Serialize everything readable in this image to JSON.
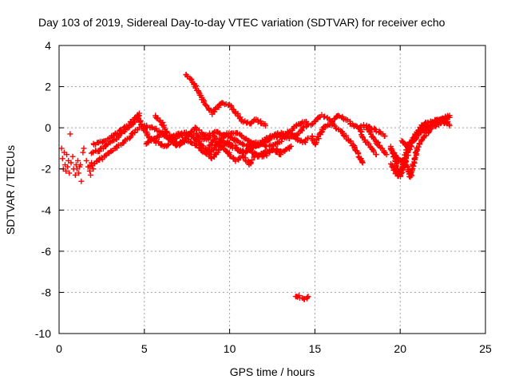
{
  "chart_data": {
    "type": "scatter",
    "title": "Day 103 of 2019, Sidereal Day-to-day VTEC variation (SDTVAR) for receiver echo",
    "xlabel": "GPS time / hours",
    "ylabel": "SDTVAR / TECUs",
    "xlim": [
      0,
      25
    ],
    "ylim": [
      -10,
      4
    ],
    "xticks": [
      0,
      5,
      10,
      15,
      20,
      25
    ],
    "yticks": [
      -10,
      -8,
      -6,
      -4,
      -2,
      0,
      2,
      4
    ],
    "grid": true,
    "marker": "+",
    "color": "#ff0000",
    "series": [
      {
        "name": "scatter-start",
        "trace": false,
        "points": [
          [
            0.15,
            -1.0
          ],
          [
            0.2,
            -1.5
          ],
          [
            0.25,
            -2.0
          ],
          [
            0.3,
            -1.2
          ],
          [
            0.35,
            -1.8
          ],
          [
            0.4,
            -2.1
          ],
          [
            0.45,
            -1.3
          ],
          [
            0.5,
            -1.9
          ],
          [
            0.55,
            -1.6
          ],
          [
            0.6,
            -2.2
          ],
          [
            0.65,
            -0.3
          ],
          [
            0.7,
            -1.7
          ],
          [
            0.8,
            -1.4
          ],
          [
            0.85,
            -2.0
          ],
          [
            0.95,
            -2.3
          ],
          [
            1.0,
            -1.8
          ],
          [
            1.05,
            -2.0
          ],
          [
            1.1,
            -1.6
          ],
          [
            1.15,
            -2.2
          ],
          [
            1.2,
            -1.9
          ],
          [
            1.25,
            -1.8
          ],
          [
            1.3,
            -2.6
          ],
          [
            1.4,
            -1.2
          ],
          [
            1.45,
            -1.0
          ],
          [
            1.6,
            -1.6
          ],
          [
            1.7,
            -1.9
          ],
          [
            1.8,
            -2.1
          ],
          [
            1.85,
            -2.3
          ],
          [
            1.9,
            -1.7
          ],
          [
            2.0,
            -2.0
          ]
        ]
      },
      {
        "name": "rise-lower",
        "trace": true,
        "points": [
          [
            1.8,
            -1.9
          ],
          [
            2.3,
            -1.6
          ],
          [
            2.8,
            -1.3
          ],
          [
            3.3,
            -1.0
          ],
          [
            3.8,
            -0.7
          ],
          [
            4.3,
            -0.3
          ],
          [
            4.7,
            0.0
          ]
        ]
      },
      {
        "name": "rise-mid",
        "trace": true,
        "points": [
          [
            1.9,
            -1.2
          ],
          [
            2.4,
            -1.1
          ],
          [
            2.9,
            -0.8
          ],
          [
            3.4,
            -0.5
          ],
          [
            3.9,
            -0.1
          ],
          [
            4.4,
            0.3
          ],
          [
            4.7,
            0.6
          ]
        ]
      },
      {
        "name": "rise-upper",
        "trace": true,
        "points": [
          [
            2.0,
            -0.8
          ],
          [
            2.5,
            -0.7
          ],
          [
            3.0,
            -0.5
          ],
          [
            3.5,
            -0.2
          ],
          [
            4.0,
            0.1
          ],
          [
            4.4,
            0.4
          ],
          [
            4.7,
            0.7
          ]
        ]
      },
      {
        "name": "high-arc",
        "trace": true,
        "points": [
          [
            7.4,
            2.6
          ],
          [
            7.8,
            2.3
          ],
          [
            8.2,
            1.7
          ],
          [
            8.6,
            1.1
          ],
          [
            9.0,
            0.7
          ],
          [
            9.3,
            1.0
          ],
          [
            9.6,
            1.2
          ],
          [
            10.0,
            1.1
          ],
          [
            10.4,
            0.7
          ],
          [
            10.8,
            0.3
          ],
          [
            11.2,
            0.2
          ],
          [
            11.5,
            0.4
          ],
          [
            11.8,
            0.3
          ],
          [
            12.1,
            0.1
          ]
        ]
      },
      {
        "name": "tangle-a",
        "trace": true,
        "points": [
          [
            4.7,
            0.4
          ],
          [
            5.2,
            -0.4
          ],
          [
            5.7,
            -0.7
          ],
          [
            6.2,
            -0.9
          ],
          [
            6.8,
            -0.6
          ],
          [
            7.3,
            -0.2
          ],
          [
            7.8,
            -0.4
          ],
          [
            8.3,
            -0.8
          ],
          [
            8.8,
            -1.3
          ],
          [
            9.3,
            -0.8
          ],
          [
            9.8,
            -0.3
          ],
          [
            10.4,
            -0.2
          ],
          [
            11.0,
            -0.6
          ],
          [
            11.6,
            -0.9
          ],
          [
            12.2,
            -0.5
          ],
          [
            12.8,
            -0.3
          ],
          [
            13.5,
            -0.2
          ],
          [
            14.0,
            -0.6
          ],
          [
            14.4,
            -0.7
          ],
          [
            14.6,
            -0.5
          ]
        ]
      },
      {
        "name": "tangle-b",
        "trace": true,
        "points": [
          [
            5.0,
            0.1
          ],
          [
            5.5,
            0.0
          ],
          [
            6.0,
            -0.2
          ],
          [
            6.5,
            -0.5
          ],
          [
            7.0,
            -0.3
          ],
          [
            7.5,
            -0.4
          ],
          [
            8.0,
            -0.3
          ],
          [
            8.5,
            -0.6
          ],
          [
            9.0,
            -0.4
          ],
          [
            9.5,
            -0.6
          ],
          [
            10.0,
            -0.9
          ],
          [
            10.5,
            -1.1
          ],
          [
            11.0,
            -1.2
          ],
          [
            11.5,
            -0.9
          ],
          [
            12.0,
            -0.7
          ],
          [
            12.5,
            -0.5
          ],
          [
            13.0,
            -0.4
          ],
          [
            13.5,
            -0.5
          ],
          [
            14.0,
            -0.3
          ],
          [
            14.6,
            0.2
          ]
        ]
      },
      {
        "name": "tangle-c",
        "trace": true,
        "points": [
          [
            5.6,
            0.6
          ],
          [
            6.0,
            0.3
          ],
          [
            6.4,
            -0.3
          ],
          [
            6.9,
            -0.9
          ],
          [
            7.4,
            -0.5
          ],
          [
            8.0,
            0.0
          ],
          [
            8.6,
            -0.4
          ],
          [
            9.2,
            -0.2
          ],
          [
            9.8,
            -0.4
          ],
          [
            10.4,
            -0.6
          ],
          [
            11.0,
            -0.9
          ],
          [
            11.6,
            -0.7
          ],
          [
            12.2,
            -0.9
          ],
          [
            12.8,
            -0.8
          ],
          [
            13.4,
            -0.3
          ],
          [
            13.9,
            0.1
          ],
          [
            14.5,
            0.3
          ]
        ]
      },
      {
        "name": "tangle-d",
        "trace": true,
        "points": [
          [
            5.1,
            -0.8
          ],
          [
            5.6,
            -0.5
          ],
          [
            6.1,
            -0.3
          ],
          [
            6.5,
            -0.6
          ],
          [
            7.0,
            -0.8
          ],
          [
            7.6,
            -0.6
          ],
          [
            8.1,
            -0.9
          ],
          [
            8.5,
            -1.2
          ],
          [
            9.0,
            -1.5
          ],
          [
            9.4,
            -1.0
          ],
          [
            9.9,
            -0.7
          ],
          [
            10.3,
            -0.9
          ],
          [
            10.7,
            -1.2
          ],
          [
            11.2,
            -1.0
          ],
          [
            11.6,
            -1.4
          ],
          [
            12.0,
            -1.2
          ],
          [
            12.5,
            -1.0
          ],
          [
            13.1,
            -1.2
          ],
          [
            13.6,
            -0.9
          ]
        ]
      },
      {
        "name": "tangle-e",
        "trace": true,
        "points": [
          [
            8.6,
            -1.2
          ],
          [
            9.1,
            -0.6
          ],
          [
            9.5,
            -0.9
          ],
          [
            10.0,
            -1.3
          ],
          [
            10.4,
            -1.6
          ],
          [
            10.8,
            -1.4
          ],
          [
            11.2,
            -1.8
          ],
          [
            11.5,
            -1.3
          ],
          [
            12.0,
            -1.4
          ],
          [
            12.5,
            -1.1
          ],
          [
            13.0,
            -1.3
          ]
        ]
      },
      {
        "name": "cluster-15",
        "trace": true,
        "points": [
          [
            14.8,
            0.1
          ],
          [
            15.1,
            0.4
          ],
          [
            15.4,
            0.6
          ],
          [
            15.7,
            0.5
          ],
          [
            16.0,
            0.3
          ],
          [
            16.3,
            0.6
          ],
          [
            16.6,
            0.5
          ],
          [
            17.0,
            0.3
          ],
          [
            17.3,
            0.1
          ],
          [
            17.6,
            0.0
          ],
          [
            17.9,
            0.1
          ],
          [
            18.2,
            0.0
          ],
          [
            18.5,
            -0.1
          ],
          [
            18.8,
            -0.2
          ],
          [
            19.1,
            -0.4
          ]
        ]
      },
      {
        "name": "cluster-15-low",
        "trace": true,
        "points": [
          [
            14.8,
            -0.4
          ],
          [
            15.0,
            -0.8
          ],
          [
            15.3,
            -0.3
          ],
          [
            15.6,
            0.1
          ],
          [
            16.0,
            0.2
          ],
          [
            16.4,
            -0.1
          ],
          [
            16.8,
            -0.4
          ],
          [
            17.2,
            -0.8
          ],
          [
            17.5,
            -1.2
          ],
          [
            17.8,
            -1.7
          ]
        ]
      },
      {
        "name": "cluster-17-down",
        "trace": true,
        "points": [
          [
            17.6,
            0.0
          ],
          [
            17.8,
            -0.4
          ],
          [
            18.0,
            -0.7
          ],
          [
            18.2,
            -0.9
          ],
          [
            18.4,
            -1.1
          ],
          [
            18.6,
            -1.3
          ]
        ]
      },
      {
        "name": "cluster-17-down-b",
        "trace": true,
        "points": [
          [
            18.0,
            0.1
          ],
          [
            18.3,
            -0.3
          ],
          [
            18.6,
            -0.7
          ],
          [
            18.9,
            -1.0
          ],
          [
            19.2,
            -1.3
          ]
        ]
      },
      {
        "name": "late-a",
        "trace": true,
        "points": [
          [
            19.4,
            -0.9
          ],
          [
            19.7,
            -1.5
          ],
          [
            19.9,
            -2.2
          ],
          [
            20.1,
            -2.0
          ],
          [
            20.3,
            -1.3
          ],
          [
            20.6,
            -0.7
          ],
          [
            20.9,
            -0.4
          ],
          [
            21.2,
            -0.1
          ],
          [
            21.6,
            0.0
          ],
          [
            22.0,
            0.1
          ],
          [
            22.4,
            0.2
          ],
          [
            22.8,
            0.3
          ]
        ]
      },
      {
        "name": "late-b",
        "trace": true,
        "points": [
          [
            19.5,
            -1.8
          ],
          [
            19.8,
            -2.3
          ],
          [
            20.0,
            -2.4
          ],
          [
            20.2,
            -1.9
          ],
          [
            20.5,
            -1.2
          ],
          [
            20.7,
            -0.7
          ],
          [
            21.0,
            -0.4
          ],
          [
            21.3,
            -0.1
          ],
          [
            21.7,
            0.1
          ],
          [
            22.1,
            0.3
          ],
          [
            22.5,
            0.4
          ],
          [
            22.9,
            0.5
          ]
        ]
      },
      {
        "name": "late-c",
        "trace": true,
        "points": [
          [
            19.6,
            -1.2
          ],
          [
            19.9,
            -1.6
          ],
          [
            20.2,
            -1.6
          ],
          [
            20.4,
            -1.9
          ],
          [
            20.6,
            -2.4
          ],
          [
            20.8,
            -1.7
          ],
          [
            21.0,
            -1.0
          ],
          [
            21.3,
            -0.5
          ],
          [
            21.6,
            -0.2
          ],
          [
            22.0,
            0.2
          ],
          [
            22.4,
            0.4
          ],
          [
            22.9,
            0.6
          ]
        ]
      },
      {
        "name": "late-d",
        "trace": true,
        "points": [
          [
            20.1,
            -0.6
          ],
          [
            20.4,
            -0.9
          ],
          [
            20.7,
            -0.6
          ],
          [
            21.0,
            -0.2
          ],
          [
            21.4,
            0.2
          ],
          [
            21.8,
            0.3
          ],
          [
            22.2,
            0.4
          ],
          [
            22.6,
            0.3
          ],
          [
            22.9,
            0.1
          ]
        ]
      },
      {
        "name": "outlier-cluster",
        "trace": true,
        "points": [
          [
            13.9,
            -8.2
          ],
          [
            14.1,
            -8.2
          ],
          [
            14.3,
            -8.3
          ],
          [
            14.5,
            -8.3
          ],
          [
            14.6,
            -8.2
          ]
        ]
      }
    ]
  }
}
